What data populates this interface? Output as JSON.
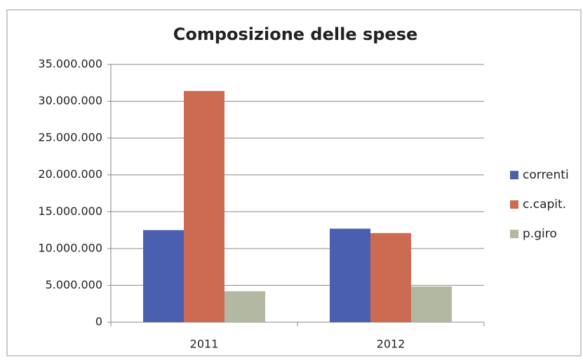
{
  "chart_data": {
    "type": "bar",
    "title": "Composizione delle spese",
    "categories": [
      "2011",
      "2012"
    ],
    "series": [
      {
        "name": "correnti",
        "color": "#4a5fb0",
        "values": [
          12500000,
          12700000
        ]
      },
      {
        "name": "c.capit.",
        "color": "#cc6b52",
        "values": [
          31400000,
          12100000
        ]
      },
      {
        "name": "p.giro",
        "color": "#b3b8a2",
        "values": [
          4200000,
          4850000
        ]
      }
    ],
    "ylim": [
      0,
      35000000
    ],
    "yticks": [
      0,
      {
        "value": 5000000,
        "label": "5.000.000"
      },
      {
        "value": 10000000,
        "label": "10.000.000"
      },
      {
        "value": 15000000,
        "label": "15.000.000"
      },
      {
        "value": 20000000,
        "label": "20.000.000"
      },
      {
        "value": 25000000,
        "label": "25.000.000"
      },
      {
        "value": 30000000,
        "label": "30.000.000"
      },
      {
        "value": 35000000,
        "label": "35.000.000"
      }
    ],
    "grid": true,
    "legend": "right"
  }
}
